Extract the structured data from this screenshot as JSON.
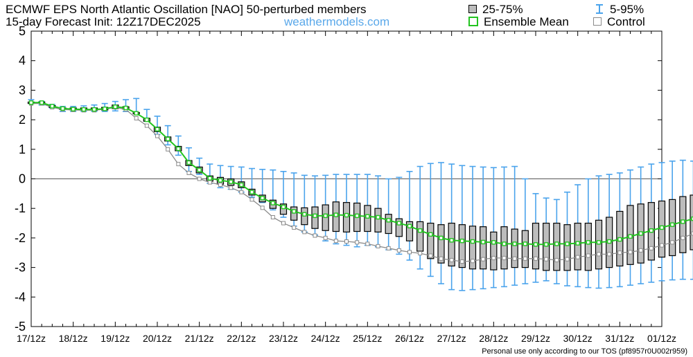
{
  "title": "ECMWF EPS North Atlantic Oscillation [NAO]  50-perturbed members",
  "subtitle": "15-day Forecast Init: 12Z17DEC2025",
  "brand": "weathermodels.com",
  "legend": {
    "box": "25-75%",
    "whisker": "5-95%",
    "mean": "Ensemble Mean",
    "control": "Control"
  },
  "footer": "Personal use only according to our TOS (pf8957r0U002r959)",
  "colors": {
    "whisker": "#4aa3ec",
    "box_fill": "#bdbdbd",
    "mean": "#22c41f",
    "control": "#8a8a8a",
    "brand": "#5aa8ea"
  },
  "chart_data": {
    "type": "box",
    "ylim": [
      -5,
      5
    ],
    "yticks": [
      "-5",
      "-4",
      "-3",
      "-2",
      "-1",
      "0",
      "1",
      "2",
      "3",
      "4",
      "5"
    ],
    "xticks": [
      "17/12z",
      "18/12z",
      "19/12z",
      "20/12z",
      "21/12z",
      "22/12z",
      "23/12z",
      "24/12z",
      "25/12z",
      "26/12z",
      "27/12z",
      "28/12z",
      "29/12z",
      "30/12z",
      "31/12z",
      "01/12z"
    ],
    "x_step_hours": 6,
    "series": [
      {
        "name": "5-95%",
        "lower": [
          2.58,
          2.5,
          2.4,
          2.28,
          2.28,
          2.28,
          2.28,
          2.28,
          2.3,
          2.28,
          2.22,
          1.95,
          1.5,
          1.15,
          0.8,
          0.25,
          0.15,
          -0.15,
          -0.3,
          -0.35,
          -0.45,
          -0.62,
          -0.8,
          -1.05,
          -1.3,
          -1.6,
          -1.8,
          -1.9,
          -2.1,
          -2.2,
          -2.25,
          -2.3,
          -2.25,
          -2.3,
          -2.4,
          -2.55,
          -2.75,
          -3.05,
          -3.3,
          -3.55,
          -3.75,
          -3.78,
          -3.75,
          -3.72,
          -3.68,
          -3.65,
          -3.6,
          -3.55,
          -3.5,
          -3.45,
          -3.55,
          -3.62,
          -3.65,
          -3.68,
          -3.7,
          -3.68,
          -3.65,
          -3.6,
          -3.55,
          -3.5,
          -3.45,
          -3.42,
          -3.4,
          -3.4,
          -3.38
        ]
      },
      {
        "name": "25-75%",
        "q1": [
          2.55,
          2.55,
          2.42,
          2.35,
          2.33,
          2.32,
          2.32,
          2.33,
          2.38,
          2.36,
          2.2,
          1.95,
          1.6,
          1.28,
          0.95,
          0.45,
          0.2,
          -0.08,
          -0.18,
          -0.22,
          -0.3,
          -0.55,
          -0.78,
          -1.0,
          -1.2,
          -1.4,
          -1.55,
          -1.68,
          -1.75,
          -1.78,
          -1.8,
          -1.78,
          -1.78,
          -1.8,
          -1.85,
          -1.95,
          -2.1,
          -2.45,
          -2.7,
          -2.85,
          -2.95,
          -3.0,
          -3.05,
          -3.05,
          -3.08,
          -3.05,
          -3.0,
          -3.0,
          -3.05,
          -3.1,
          -3.1,
          -3.1,
          -3.08,
          -3.1,
          -3.05,
          -3.0,
          -2.95,
          -2.9,
          -2.85,
          -2.75,
          -2.65,
          -2.6,
          -2.5,
          -2.4,
          -2.35
        ],
        "q3": [
          2.6,
          2.6,
          2.48,
          2.4,
          2.4,
          2.4,
          2.4,
          2.42,
          2.5,
          2.44,
          2.25,
          2.05,
          1.75,
          1.42,
          1.1,
          0.62,
          0.4,
          0.1,
          0.05,
          0.0,
          -0.1,
          -0.35,
          -0.55,
          -0.72,
          -0.85,
          -0.95,
          -0.98,
          -0.95,
          -0.88,
          -0.78,
          -0.8,
          -0.82,
          -0.9,
          -1.0,
          -1.2,
          -1.35,
          -1.45,
          -1.45,
          -1.5,
          -1.55,
          -1.5,
          -1.55,
          -1.6,
          -1.62,
          -1.8,
          -1.62,
          -1.7,
          -1.75,
          -1.5,
          -1.5,
          -1.5,
          -1.55,
          -1.5,
          -1.5,
          -1.4,
          -1.3,
          -1.1,
          -0.9,
          -0.85,
          -0.8,
          -0.75,
          -0.7,
          -0.6,
          -0.55,
          -0.5
        ]
      },
      {
        "name": "Ensemble Mean",
        "values": [
          2.58,
          2.58,
          2.46,
          2.38,
          2.36,
          2.35,
          2.35,
          2.37,
          2.44,
          2.4,
          2.22,
          2.0,
          1.68,
          1.35,
          1.02,
          0.55,
          0.3,
          0.02,
          -0.05,
          -0.1,
          -0.2,
          -0.45,
          -0.65,
          -0.82,
          -0.95,
          -1.1,
          -1.2,
          -1.25,
          -1.25,
          -1.22,
          -1.23,
          -1.25,
          -1.27,
          -1.3,
          -1.4,
          -1.5,
          -1.6,
          -1.75,
          -1.88,
          -2.0,
          -2.08,
          -2.1,
          -2.12,
          -2.14,
          -2.15,
          -2.2,
          -2.2,
          -2.2,
          -2.22,
          -2.22,
          -2.2,
          -2.2,
          -2.18,
          -2.15,
          -2.15,
          -2.12,
          -2.05,
          -1.95,
          -1.85,
          -1.75,
          -1.65,
          -1.55,
          -1.45,
          -1.35,
          -1.28
        ]
      },
      {
        "name": "Control",
        "values": [
          2.55,
          2.55,
          2.42,
          2.35,
          2.33,
          2.32,
          2.32,
          2.36,
          2.42,
          2.35,
          2.05,
          1.8,
          1.45,
          1.0,
          0.5,
          0.2,
          0.0,
          -0.12,
          -0.2,
          -0.3,
          -0.45,
          -0.7,
          -0.98,
          -1.3,
          -1.5,
          -1.65,
          -1.8,
          -1.92,
          -2.0,
          -2.1,
          -2.12,
          -2.15,
          -2.2,
          -2.28,
          -2.35,
          -2.42,
          -2.48,
          -2.52,
          -2.6,
          -2.7,
          -2.75,
          -2.8,
          -2.78,
          -2.72,
          -2.68,
          -2.68,
          -2.7,
          -2.7,
          -2.7,
          -2.72,
          -2.75,
          -2.72,
          -2.65,
          -2.6,
          -2.55,
          -2.55,
          -2.5,
          -2.48,
          -2.42,
          -2.35,
          -2.25,
          -2.15,
          -2.0,
          -1.85,
          -1.7
        ]
      }
    ]
  }
}
